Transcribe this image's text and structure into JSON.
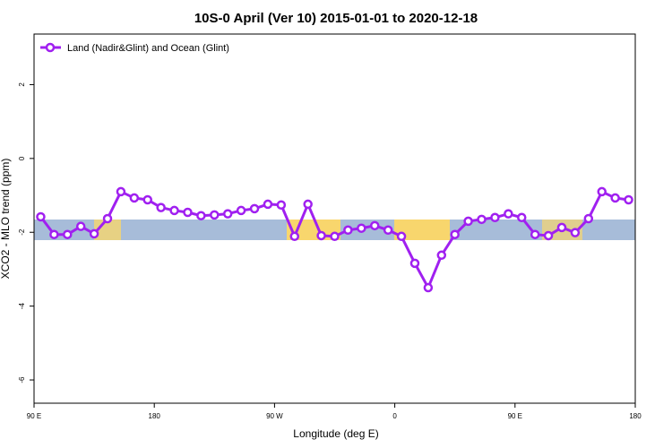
{
  "chart_data": {
    "type": "line",
    "title": "10S-0 April (Ver 10)   2015-01-01 to 2020-12-18",
    "x_label": "Longitude (deg E)",
    "y_label": "XCO2 - MLO trend (ppm)",
    "xlim": [
      90,
      540
    ],
    "ylim": [
      -6.63,
      3.37
    ],
    "xticks": [
      {
        "value": 90,
        "label": "90 E"
      },
      180,
      {
        "value": 270,
        "label": "90 W"
      },
      {
        "value": 360,
        "label": "0"
      },
      {
        "value": 450,
        "label": "90 E"
      },
      {
        "value": 540,
        "label": "180"
      }
    ],
    "yticks": [
      -6,
      -4,
      -2,
      0,
      2
    ],
    "legend": "top-left",
    "x": [
      95,
      105,
      115,
      125,
      135,
      145,
      155,
      165,
      175,
      185,
      195,
      205,
      215,
      225,
      235,
      245,
      255,
      265,
      275,
      285,
      295,
      305,
      315,
      325,
      335,
      345,
      355,
      365,
      375,
      385,
      395,
      405,
      415,
      425,
      435,
      445,
      455,
      465,
      475,
      485,
      495,
      505,
      515,
      525,
      535
    ],
    "series": [
      {
        "name": "Land (Nadir&Glint) and Ocean (Glint)",
        "color": "#a020f0",
        "values": [
          -1.58,
          -2.06,
          -2.06,
          -1.84,
          -2.04,
          -1.63,
          -0.9,
          -1.07,
          -1.12,
          -1.33,
          -1.41,
          -1.46,
          -1.55,
          -1.53,
          -1.5,
          -1.41,
          -1.36,
          -1.24,
          -1.26,
          -2.11,
          -1.24,
          -2.09,
          -2.11,
          -1.94,
          -1.89,
          -1.82,
          -1.94,
          -2.11,
          -2.84,
          -3.5,
          -2.62,
          -2.06,
          -1.7,
          -1.65,
          -1.6,
          -1.5,
          -1.6,
          -2.06,
          -2.09,
          -1.87,
          -2.01,
          -1.63,
          -0.9,
          -1.07,
          -1.12
        ]
      }
    ]
  }
}
